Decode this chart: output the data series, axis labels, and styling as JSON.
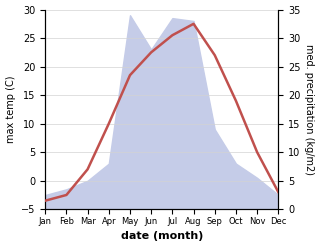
{
  "months": [
    "Jan",
    "Feb",
    "Mar",
    "Apr",
    "May",
    "Jun",
    "Jul",
    "Aug",
    "Sep",
    "Oct",
    "Nov",
    "Dec"
  ],
  "month_indices": [
    1,
    2,
    3,
    4,
    5,
    6,
    7,
    8,
    9,
    10,
    11,
    12
  ],
  "temperature": [
    -3.5,
    -2.5,
    2.0,
    10.0,
    18.5,
    22.5,
    25.5,
    27.5,
    22.0,
    14.0,
    5.0,
    -2.0
  ],
  "precipitation": [
    2.5,
    3.5,
    5.0,
    8.0,
    34.0,
    28.0,
    33.5,
    33.0,
    14.0,
    8.0,
    5.5,
    2.5
  ],
  "temp_color": "#c0504d",
  "precip_fill_color": "#c5cce8",
  "temp_ylim": [
    -5,
    30
  ],
  "precip_ylim": [
    0,
    35
  ],
  "temp_yticks": [
    -5,
    0,
    5,
    10,
    15,
    20,
    25,
    30
  ],
  "precip_yticks": [
    0,
    5,
    10,
    15,
    20,
    25,
    30,
    35
  ],
  "xlabel": "date (month)",
  "ylabel_left": "max temp (C)",
  "ylabel_right": "med. precipitation (kg/m2)",
  "figsize": [
    3.2,
    2.47
  ],
  "dpi": 100
}
